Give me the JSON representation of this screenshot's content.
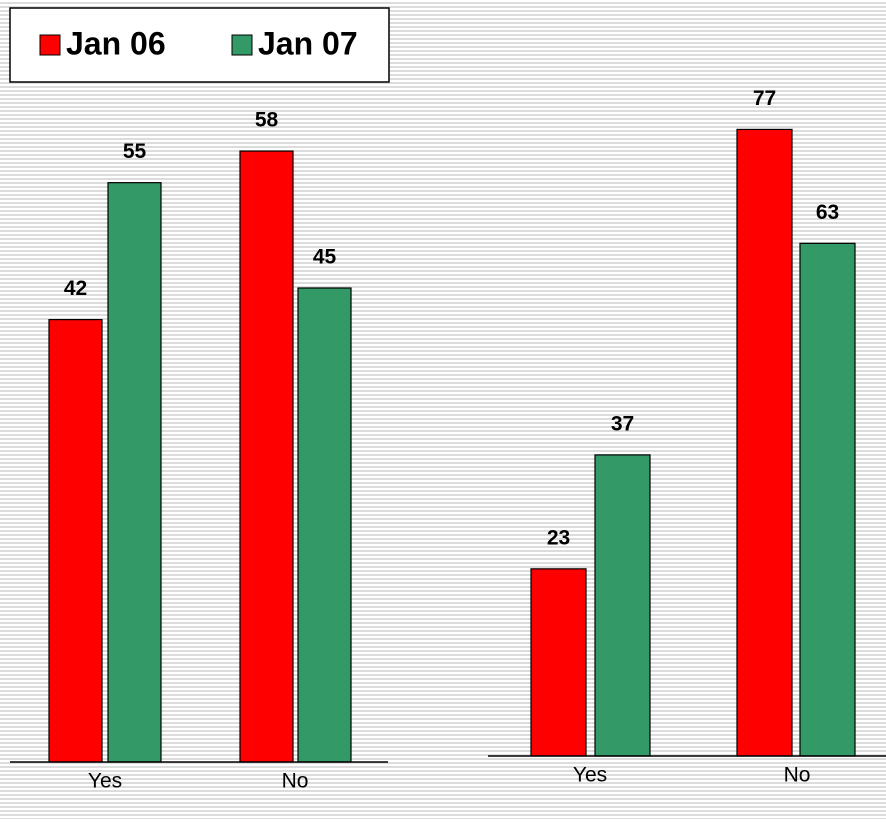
{
  "chart_data": [
    {
      "type": "bar",
      "categories": [
        "Yes",
        "No"
      ],
      "ylim": [
        0,
        60
      ],
      "series": [
        {
          "name": "Jan 06",
          "color": "#ff0000",
          "values": [
            42,
            58
          ]
        },
        {
          "name": "Jan 07",
          "color": "#339966",
          "values": [
            55,
            45
          ]
        }
      ]
    },
    {
      "type": "bar",
      "categories": [
        "Yes",
        "No"
      ],
      "ylim": [
        0,
        80
      ],
      "series": [
        {
          "color": "#ff0000",
          "values": [
            23,
            77
          ]
        },
        {
          "color": "#339966",
          "values": [
            37,
            63
          ]
        }
      ]
    }
  ]
}
